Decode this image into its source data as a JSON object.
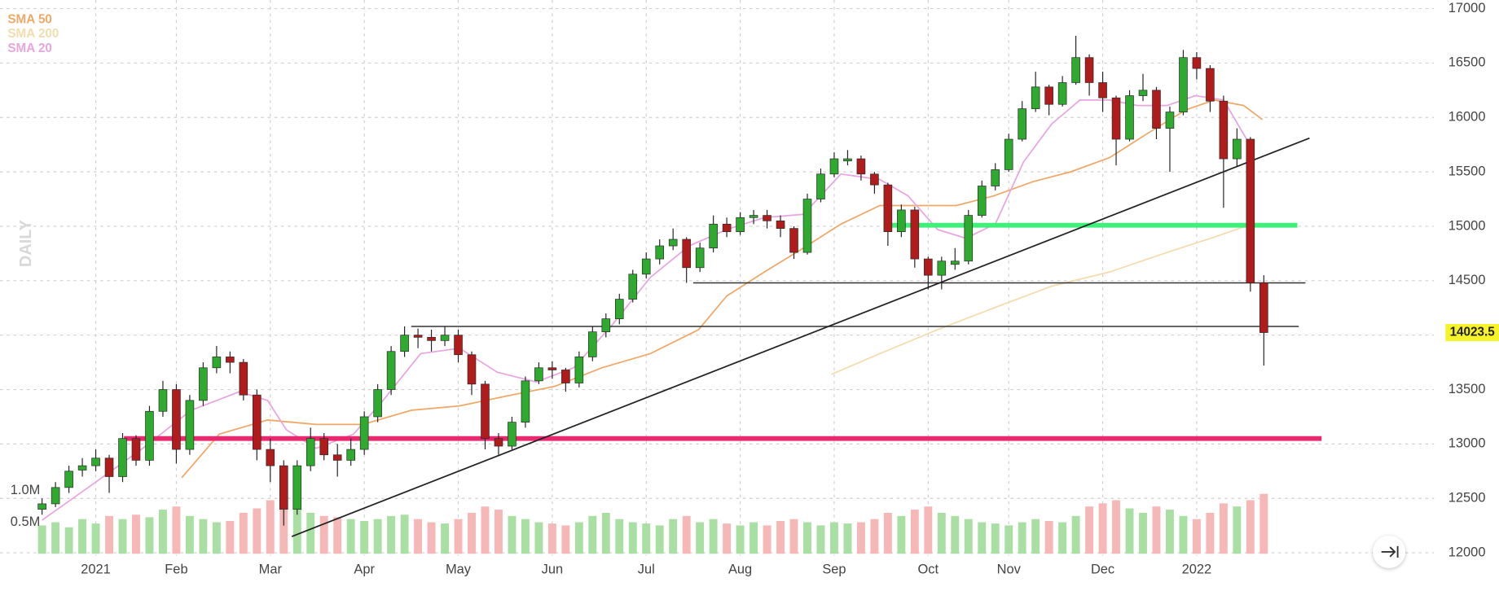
{
  "chart_data": {
    "type": "candlestick",
    "watermark": "DAILY",
    "grid": true,
    "categories": [
      null,
      null,
      null,
      null,
      "2021",
      null,
      null,
      null,
      null,
      null,
      "Feb",
      null,
      null,
      null,
      null,
      null,
      null,
      "Mar",
      null,
      null,
      null,
      null,
      null,
      null,
      "Apr",
      null,
      null,
      null,
      null,
      null,
      null,
      "May",
      null,
      null,
      null,
      null,
      null,
      null,
      "Jun",
      null,
      null,
      null,
      null,
      null,
      null,
      "Jul",
      null,
      null,
      null,
      null,
      null,
      null,
      "Aug",
      null,
      null,
      null,
      null,
      null,
      null,
      "Sep",
      null,
      null,
      null,
      null,
      null,
      null,
      "Oct",
      null,
      null,
      null,
      null,
      null,
      "Nov",
      null,
      null,
      null,
      null,
      null,
      null,
      "Dec",
      null,
      null,
      null,
      null,
      null,
      null,
      "2022",
      null,
      null,
      null,
      null,
      null
    ],
    "open": [
      12400,
      12450,
      12600,
      12760,
      12800,
      12870,
      12700,
      13050,
      12850,
      13300,
      13500,
      12950,
      13400,
      13700,
      13800,
      13750,
      13450,
      12950,
      12800,
      12400,
      12800,
      13050,
      12900,
      12850,
      12950,
      13250,
      13500,
      13850,
      14000,
      13980,
      13950,
      14000,
      13820,
      13550,
      13050,
      12980,
      13200,
      13580,
      13700,
      13680,
      13560,
      13800,
      14030,
      14150,
      14330,
      14560,
      14700,
      14820,
      14880,
      14620,
      14800,
      15020,
      14950,
      15080,
      15100,
      15050,
      14980,
      14760,
      15250,
      15480,
      15600,
      15620,
      15480,
      15380,
      14950,
      15150,
      14700,
      14550,
      14650,
      14680,
      15100,
      15370,
      15520,
      15800,
      16080,
      16280,
      16120,
      16320,
      16550,
      16320,
      16180,
      15800,
      16200,
      16250,
      15900,
      16050,
      16550,
      16450,
      16150,
      15620,
      15800,
      14480
    ],
    "high": [
      12500,
      12650,
      12800,
      12870,
      12950,
      12900,
      13100,
      13080,
      13350,
      13580,
      13550,
      13450,
      13750,
      13900,
      13850,
      13780,
      13500,
      13050,
      12850,
      12850,
      13150,
      13100,
      13000,
      13050,
      13300,
      13550,
      13900,
      14080,
      14060,
      14050,
      14080,
      14050,
      13850,
      13580,
      13100,
      13250,
      13620,
      13750,
      13760,
      13700,
      13850,
      14080,
      14200,
      14380,
      14600,
      14760,
      14880,
      14980,
      14900,
      14850,
      15100,
      15080,
      15130,
      15150,
      15150,
      15100,
      15000,
      15300,
      15530,
      15680,
      15700,
      15650,
      15500,
      15400,
      15200,
      15180,
      14720,
      14720,
      14800,
      15150,
      15420,
      15580,
      15850,
      16150,
      16420,
      16300,
      16380,
      16750,
      16580,
      16420,
      16200,
      16250,
      16400,
      16280,
      16100,
      16620,
      16600,
      16480,
      16200,
      15900,
      15820,
      14550
    ],
    "low": [
      12350,
      12420,
      12550,
      12700,
      12750,
      12550,
      12650,
      12800,
      12800,
      13250,
      12820,
      12900,
      13350,
      13650,
      13650,
      13400,
      12850,
      12650,
      12250,
      12350,
      12750,
      12850,
      12700,
      12800,
      12900,
      13200,
      13450,
      13800,
      13880,
      13850,
      13900,
      13750,
      13450,
      12950,
      12900,
      12950,
      13150,
      13550,
      13600,
      13480,
      13520,
      13760,
      13980,
      14100,
      14300,
      14520,
      14650,
      14780,
      14480,
      14580,
      14760,
      14900,
      14920,
      15020,
      14980,
      14900,
      14700,
      14740,
      15220,
      15450,
      15560,
      15420,
      15300,
      14820,
      14900,
      14620,
      14420,
      14420,
      14600,
      14650,
      15080,
      15330,
      15500,
      15780,
      16050,
      16020,
      16100,
      16300,
      16200,
      16050,
      15560,
      15780,
      16150,
      15800,
      15500,
      16020,
      16350,
      16050,
      15170,
      15550,
      14400,
      13720
    ],
    "close": [
      12450,
      12600,
      12750,
      12800,
      12870,
      12700,
      13050,
      12850,
      13300,
      13500,
      12950,
      13400,
      13700,
      13800,
      13750,
      13450,
      12950,
      12800,
      12400,
      12800,
      13050,
      12900,
      12850,
      12950,
      13250,
      13500,
      13850,
      14000,
      13980,
      13950,
      14000,
      13820,
      13550,
      13050,
      12980,
      13200,
      13580,
      13700,
      13680,
      13560,
      13800,
      14030,
      14150,
      14330,
      14560,
      14700,
      14820,
      14880,
      14620,
      14800,
      15020,
      14950,
      15080,
      15100,
      15050,
      14980,
      14760,
      15250,
      15480,
      15620,
      15620,
      15480,
      15380,
      14950,
      15150,
      14700,
      14550,
      14680,
      14680,
      15100,
      15370,
      15520,
      15800,
      16080,
      16280,
      16120,
      16320,
      16550,
      16320,
      16180,
      15800,
      16200,
      16250,
      15900,
      16050,
      16550,
      16450,
      16150,
      15620,
      15800,
      14480,
      14023.5
    ],
    "up_color": "#2eaa2e",
    "down_color": "#b01c1c",
    "ylim": [
      12000,
      17000
    ],
    "yticks": [
      12000,
      12500,
      13000,
      13500,
      14000,
      14500,
      15000,
      15500,
      16000,
      16500,
      17000
    ],
    "volume": {
      "values": [
        0.45,
        0.5,
        0.42,
        0.55,
        0.48,
        0.6,
        0.55,
        0.62,
        0.58,
        0.7,
        0.75,
        0.6,
        0.55,
        0.5,
        0.52,
        0.65,
        0.72,
        0.85,
        0.9,
        0.78,
        0.65,
        0.6,
        0.58,
        0.55,
        0.52,
        0.55,
        0.6,
        0.62,
        0.55,
        0.5,
        0.48,
        0.55,
        0.65,
        0.75,
        0.7,
        0.6,
        0.55,
        0.5,
        0.48,
        0.45,
        0.5,
        0.6,
        0.65,
        0.55,
        0.5,
        0.48,
        0.45,
        0.55,
        0.6,
        0.5,
        0.55,
        0.48,
        0.45,
        0.5,
        0.45,
        0.52,
        0.55,
        0.5,
        0.45,
        0.5,
        0.48,
        0.5,
        0.55,
        0.65,
        0.6,
        0.7,
        0.75,
        0.65,
        0.6,
        0.55,
        0.5,
        0.48,
        0.45,
        0.5,
        0.55,
        0.52,
        0.5,
        0.6,
        0.75,
        0.8,
        0.85,
        0.72,
        0.65,
        0.75,
        0.7,
        0.6,
        0.55,
        0.65,
        0.8,
        0.75,
        0.85,
        0.95
      ],
      "ylim": [
        0,
        1
      ],
      "yticks": [
        {
          "value": 0.5,
          "label": "0.5M"
        },
        {
          "value": 1,
          "label": "1.0M"
        }
      ],
      "up_color": "#a9dfa2",
      "down_color": "#f6b7b7"
    },
    "overlays": [
      {
        "name": "SMA 50",
        "color": "#f0a868",
        "x": [
          10.4,
          13.2,
          16.8,
          20.4,
          23.9,
          27.5,
          31.1,
          34.6,
          38.2,
          41.7,
          45.3,
          48.9,
          51,
          53.8,
          56.7,
          59.5,
          62.4,
          65.2,
          68.1,
          70.9,
          73.8,
          76.6,
          79.5,
          82.3,
          85.2,
          87.3,
          89.5,
          90.9
        ],
        "values": [
          12690,
          13090,
          13220,
          13180,
          13180,
          13310,
          13350,
          13440,
          13530,
          13700,
          13830,
          14050,
          14360,
          14580,
          14800,
          15020,
          15190,
          15190,
          15190,
          15280,
          15410,
          15500,
          15630,
          15850,
          16070,
          16160,
          16110,
          15980
        ]
      },
      {
        "name": "SMA 200",
        "color": "#f3dcae",
        "x": [
          58.8,
          62.4,
          66.7,
          70.9,
          75.2,
          79.5,
          83.8,
          87.3,
          90.1
        ],
        "values": [
          13640,
          13830,
          14050,
          14250,
          14450,
          14580,
          14760,
          14900,
          15020
        ]
      },
      {
        "name": "SMA 20",
        "color": "#e8a6e0",
        "x": [
          0,
          4,
          7.5,
          11.1,
          14.7,
          16.8,
          18.2,
          20.4,
          23.2,
          25.4,
          28.2,
          31.1,
          33.9,
          36.8,
          39.6,
          42.5,
          45.3,
          48.2,
          51,
          53.8,
          56.7,
          59.5,
          62.4,
          64.5,
          66.7,
          68.8,
          71,
          73.1,
          75.2,
          77.3,
          79.5,
          81.6,
          83.8,
          85.9,
          88,
          90.1
        ],
        "values": [
          12300,
          12650,
          12960,
          13310,
          13480,
          13400,
          13130,
          12960,
          13090,
          13400,
          13830,
          13880,
          13660,
          13570,
          13700,
          14100,
          14530,
          14820,
          14970,
          15080,
          15110,
          15480,
          15430,
          15280,
          14970,
          14890,
          15020,
          15590,
          15940,
          16160,
          16160,
          16110,
          16110,
          16200,
          16160,
          15720
        ]
      }
    ],
    "lines": [
      {
        "color": "#e8296f",
        "width": 5,
        "from": [
          6.1,
          13050
        ],
        "to": [
          95.3,
          13050
        ]
      },
      {
        "color": "#3ef07a",
        "width": 5,
        "from": [
          62.7,
          15010
        ],
        "to": [
          93.5,
          15010
        ]
      },
      {
        "color": "#333333",
        "width": 1.3,
        "from": [
          48.5,
          14480
        ],
        "to": [
          94.1,
          14480
        ]
      },
      {
        "color": "#333333",
        "width": 1.3,
        "from": [
          27.5,
          14080
        ],
        "to": [
          93.6,
          14080
        ]
      },
      {
        "color": "#222222",
        "width": 1.5,
        "from": [
          18.6,
          12150
        ],
        "to": [
          94.4,
          15810
        ]
      }
    ]
  }
}
